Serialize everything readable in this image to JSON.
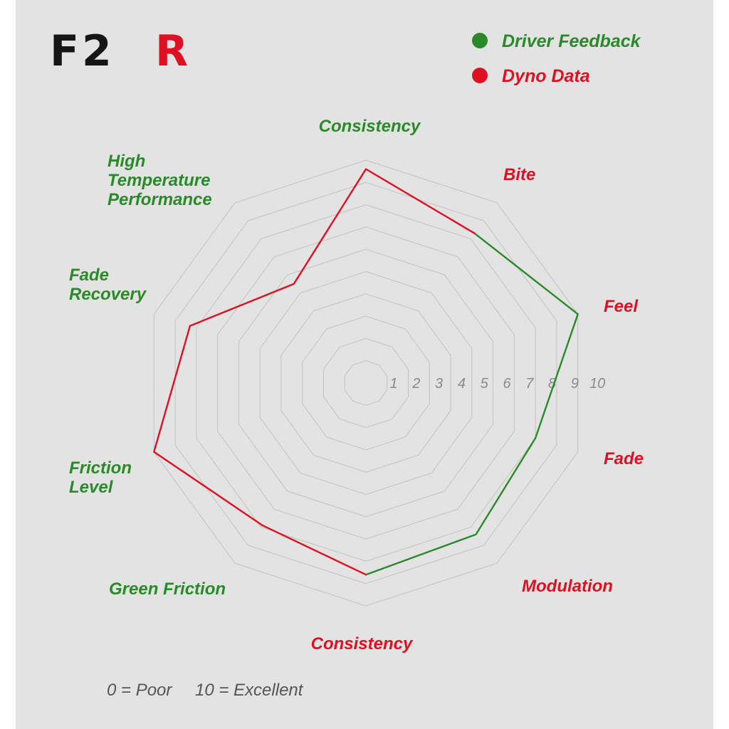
{
  "brand": {
    "logo_part1": "F2",
    "logo_part2": "R"
  },
  "legend": {
    "driver_feedback": "Driver Feedback",
    "dyno_data": "Dyno Data"
  },
  "note": {
    "poor": "0 = Poor",
    "excellent": "10 = Excellent"
  },
  "colors": {
    "green": "#2a8a2a",
    "red": "#dd1122",
    "grid": "#c2c2c2",
    "background": "#e3e3e3",
    "logo_black": "#151515"
  },
  "chart_data": {
    "type": "radar",
    "title": "",
    "scale": [
      0,
      10
    ],
    "ticks": [
      "1",
      "2",
      "3",
      "4",
      "5",
      "6",
      "7",
      "8",
      "9",
      "10"
    ],
    "axes": [
      {
        "label": [
          "Consistency"
        ],
        "group": "Driver Feedback"
      },
      {
        "label": [
          "Bite"
        ],
        "group": "Dyno Data"
      },
      {
        "label": [
          "Feel"
        ],
        "group": "Dyno Data"
      },
      {
        "label": [
          "Fade"
        ],
        "group": "Dyno Data"
      },
      {
        "label": [
          "Modulation"
        ],
        "group": "Dyno Data"
      },
      {
        "label": [
          "Consistency"
        ],
        "group": "Dyno Data"
      },
      {
        "label": [
          "Green Friction"
        ],
        "group": "Driver Feedback"
      },
      {
        "label": [
          "Friction",
          "Level"
        ],
        "group": "Driver Feedback"
      },
      {
        "label": [
          "Fade",
          "Recovery"
        ],
        "group": "Driver Feedback"
      },
      {
        "label": [
          "High",
          "Temperature",
          "Performance"
        ],
        "group": "Driver Feedback"
      }
    ],
    "series": [
      {
        "name": "Driver Feedback",
        "color": "#2a8a2a",
        "axis_indices": [
          1,
          2,
          3,
          4,
          5
        ],
        "values": [
          8.3,
          10,
          8.0,
          8.4,
          8.6
        ]
      },
      {
        "name": "Dyno Data",
        "color": "#dd1122",
        "axis_indices": [
          5,
          6,
          7,
          8,
          9,
          0,
          1
        ],
        "values": [
          8.6,
          7.9,
          10,
          8.3,
          5.5,
          9.6,
          8.3
        ]
      }
    ]
  }
}
